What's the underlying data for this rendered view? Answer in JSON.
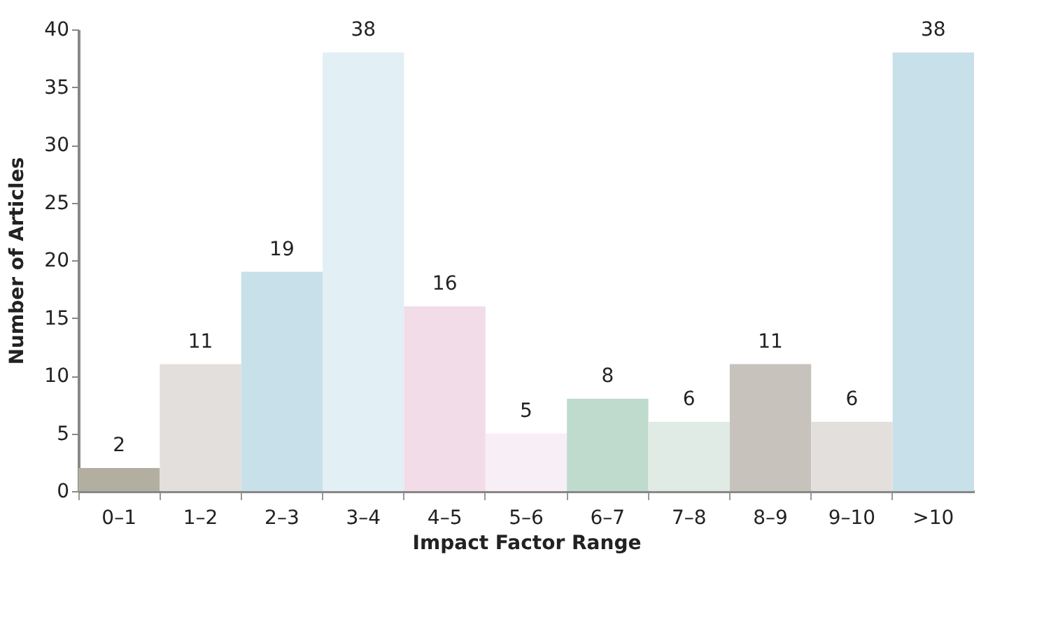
{
  "chart_data": {
    "type": "bar",
    "xlabel": "Impact Factor Range",
    "ylabel": "Number of Articles",
    "categories": [
      "0–1",
      "1–2",
      "2–3",
      "3–4",
      "4–5",
      "5–6",
      "6–7",
      "7–8",
      "8–9",
      "9–10",
      ">10"
    ],
    "values": [
      2,
      11,
      19,
      38,
      16,
      5,
      8,
      6,
      11,
      6,
      38
    ],
    "colors": [
      "#b2afa1",
      "#e3dfdc",
      "#c8e0ea",
      "#e2eff5",
      "#f2dce7",
      "#f8eef5",
      "#bedbcd",
      "#e1ebe6",
      "#c7c2bc",
      "#e3dfdc",
      "#c8e0ea"
    ],
    "ylim": [
      0,
      40
    ],
    "yticks": [
      0,
      5,
      10,
      15,
      20,
      25,
      30,
      35,
      40
    ],
    "grid": false,
    "data_labels": true
  }
}
